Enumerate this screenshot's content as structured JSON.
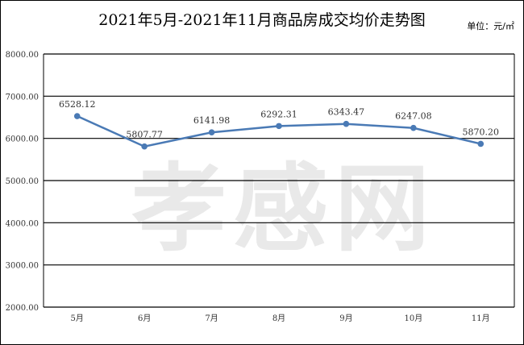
{
  "watermark": "孝感网",
  "chart_data": {
    "type": "line",
    "title": "2021年5月-2021年11月商品房成交均价走势图",
    "unit": "单位：元/㎡",
    "categories": [
      "5月",
      "6月",
      "7月",
      "8月",
      "9月",
      "10月",
      "11月"
    ],
    "series": [
      {
        "values": [
          6528.12,
          5807.77,
          6141.98,
          6292.31,
          6343.47,
          6247.08,
          5870.2
        ],
        "value_labels": [
          "6528.12",
          "5807.77",
          "6141.98",
          "6292.31",
          "6343.47",
          "6247.08",
          "5870.20"
        ]
      }
    ],
    "ylim": [
      2000,
      8000
    ],
    "yticks": [
      2000,
      3000,
      4000,
      5000,
      6000,
      7000,
      8000
    ],
    "ytick_labels": [
      "2000.00",
      "3000.00",
      "4000.00",
      "5000.00",
      "6000.00",
      "7000.00",
      "8000.00"
    ],
    "grid": true,
    "line_color": "#4a7ab5",
    "grid_color": "#000000"
  }
}
